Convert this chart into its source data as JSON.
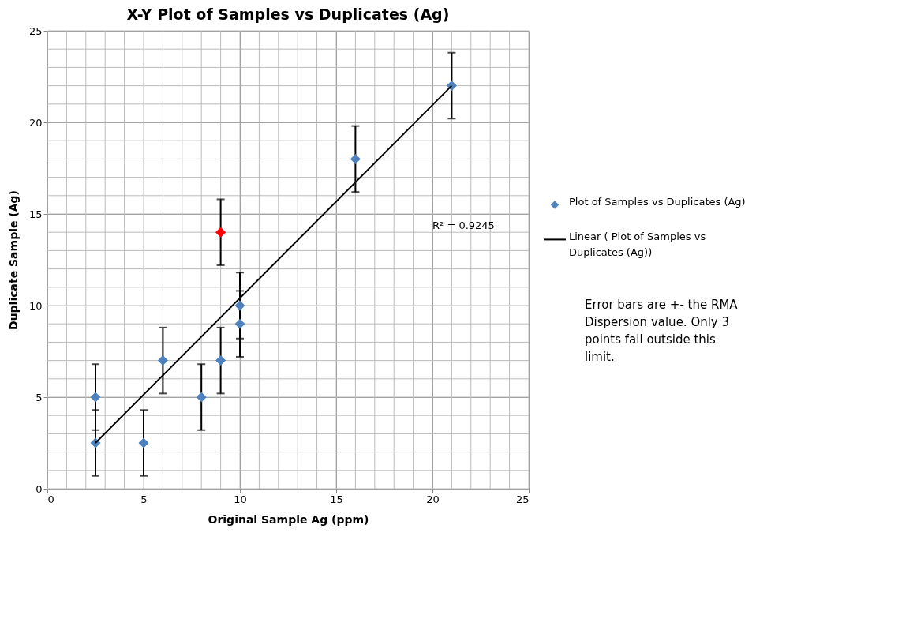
{
  "chart_data": {
    "type": "scatter",
    "title": "X-Y Plot of Samples vs Duplicates (Ag)",
    "xlabel": "Original Sample Ag (ppm)",
    "ylabel": "Duplicate Sample (Ag)",
    "xlim": [
      0,
      25
    ],
    "xticks": [
      0,
      5,
      10,
      15,
      20,
      25
    ],
    "ylim": [
      0,
      25
    ],
    "yticks": [
      0,
      5,
      10,
      15,
      20,
      25
    ],
    "grid": true,
    "legend": "right",
    "series": [
      {
        "name": "Plot of Samples vs Duplicates (Ag)",
        "marker": "diamond",
        "color": "#4f81bd",
        "x": [
          2.5,
          2.5,
          5,
          6,
          8,
          9,
          9,
          10,
          10,
          16,
          21
        ],
        "values": [
          5,
          2.5,
          2.5,
          7,
          5,
          7,
          14,
          10,
          9,
          18,
          22
        ],
        "colors": [
          "#4f81bd",
          "#4f81bd",
          "#4f81bd",
          "#4f81bd",
          "#4f81bd",
          "#4f81bd",
          "#ff0000",
          "#4f81bd",
          "#4f81bd",
          "#4f81bd",
          "#4f81bd"
        ],
        "errors": [
          1.8,
          1.8,
          1.8,
          1.8,
          1.8,
          1.8,
          1.8,
          1.8,
          1.8,
          1.8,
          1.8
        ]
      },
      {
        "name": "Linear ( Plot of Samples vs Duplicates (Ag))",
        "type": "line",
        "marker": "none",
        "color": "#000000",
        "line_style": "solid",
        "x": [
          2.5,
          21
        ],
        "values": [
          2.5,
          22
        ]
      }
    ],
    "annotations": [
      "R² = 0.9245",
      "Error bars are +- the RMA Dispersion value.  Only 3 points fall outside this limit."
    ]
  }
}
